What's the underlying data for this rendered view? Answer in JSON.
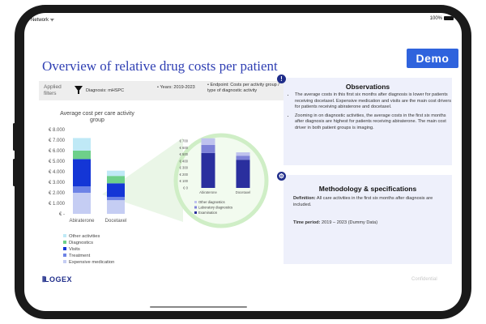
{
  "status_bar": {
    "network": "Network ᯤ",
    "battery": "100%"
  },
  "page": {
    "title": "Overview of relative drug costs per patient",
    "demo_label": "Demo",
    "confidential": "Confidential"
  },
  "filters": {
    "applied_label": "Applied filters",
    "diagnosis": "Diagnosis: mHSPC",
    "years": "Years: 2019-2023",
    "endpoint": "Endpoint: Costs per activity group / type of diagnostic activity"
  },
  "chart_data": [
    {
      "type": "bar",
      "title": "Average cost per care activity group",
      "categories": [
        "Abiraterone",
        "Docetaxel"
      ],
      "ylim": [
        0,
        8000
      ],
      "yticks": [
        "€ -",
        "€ 1.000",
        "€ 2.000",
        "€ 3.000",
        "€ 4.000",
        "€ 5.000",
        "€ 6.000",
        "€ 7.000",
        "€ 8.000"
      ],
      "stacked": true,
      "legend_position": "bottom-left",
      "series": [
        {
          "name": "Expensive medication",
          "color": "#c5cdf3",
          "values": [
            2000,
            1300
          ]
        },
        {
          "name": "Treatment",
          "color": "#6d83e6",
          "values": [
            600,
            300
          ]
        },
        {
          "name": "Visits",
          "color": "#1436d6",
          "values": [
            2600,
            1300
          ]
        },
        {
          "name": "Diagnostics",
          "color": "#6ed08a",
          "values": [
            800,
            700
          ]
        },
        {
          "name": "Other activities",
          "color": "#bfe9f6",
          "values": [
            1200,
            500
          ]
        }
      ]
    },
    {
      "type": "bar",
      "title": "",
      "categories": [
        "Abiraterone",
        "Docetaxel"
      ],
      "ylim": [
        0,
        700
      ],
      "yticks": [
        "€ 0",
        "€ 100",
        "€ 200",
        "€ 300",
        "€ 400",
        "€ 500",
        "€ 600",
        "€ 700"
      ],
      "stacked": true,
      "legend_position": "bottom-left",
      "series": [
        {
          "name": "Examination",
          "color": "#2a2f9e",
          "values": [
            520,
            420
          ]
        },
        {
          "name": "Laboratory diagnostics",
          "color": "#7e82d8",
          "values": [
            120,
            60
          ]
        },
        {
          "name": "Other diagnostics",
          "color": "#bfc2ee",
          "values": [
            100,
            50
          ]
        }
      ]
    }
  ],
  "legend_items": [
    "Other activities",
    "Diagnostics",
    "Visits",
    "Treatment",
    "Expensive medication"
  ],
  "observations": {
    "title": "Observations",
    "bullets": [
      "The average costs in this first six months after diagnosis is lower for patients receiving docetaxel. Expensive medication and visits are the main cost drivers for patients receiving abiraterone and docetaxel.",
      "Zooming in on diagnostic activities, the average costs in the first six months after diagnosis are highest for patients receiving abiraterone. The main cost driver in both patient groups is imaging."
    ]
  },
  "methodology": {
    "title": "Methodology & specifications",
    "definition": "Definition: All care activities in the first six months after diagnosis are included.",
    "time_period": "Time period: 2019 – 2023 (Dummy Data)"
  },
  "brand": {
    "logo": "LOGEX"
  }
}
